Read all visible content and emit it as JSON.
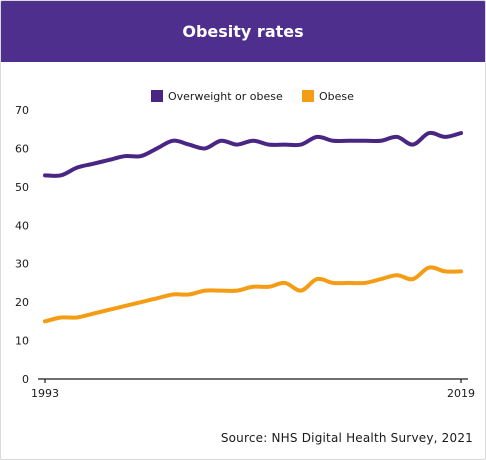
{
  "title": "Obesity rates",
  "source": "Source: NHS Digital Health Survey, 2021",
  "colors": {
    "banner": "#4f2f8e",
    "overweight": "#4a2684",
    "obese": "#f59c15",
    "axis": "#1a1a1a"
  },
  "chart_data": {
    "type": "line",
    "title": "Obesity rates",
    "xlabel": "",
    "ylabel": "",
    "x": [
      1993,
      1994,
      1995,
      1996,
      1997,
      1998,
      1999,
      2000,
      2001,
      2002,
      2003,
      2004,
      2005,
      2006,
      2007,
      2008,
      2009,
      2010,
      2011,
      2012,
      2013,
      2014,
      2015,
      2016,
      2017,
      2018,
      2019
    ],
    "x_tick_labels": [
      "1993",
      "2019"
    ],
    "ylim": [
      0,
      70
    ],
    "yticks": [
      0,
      10,
      20,
      30,
      40,
      50,
      60,
      70
    ],
    "grid": false,
    "legend_position": "top-center",
    "series": [
      {
        "name": "Overweight or obese",
        "values": [
          53,
          53,
          55,
          56,
          57,
          58,
          58,
          60,
          62,
          61,
          60,
          62,
          61,
          62,
          61,
          61,
          61,
          63,
          62,
          62,
          62,
          62,
          63,
          61,
          64,
          63,
          64
        ]
      },
      {
        "name": "Obese",
        "values": [
          15,
          16,
          16,
          17,
          18,
          19,
          20,
          21,
          22,
          22,
          23,
          23,
          23,
          24,
          24,
          25,
          23,
          26,
          25,
          25,
          25,
          26,
          27,
          26,
          29,
          28,
          28
        ]
      }
    ]
  }
}
